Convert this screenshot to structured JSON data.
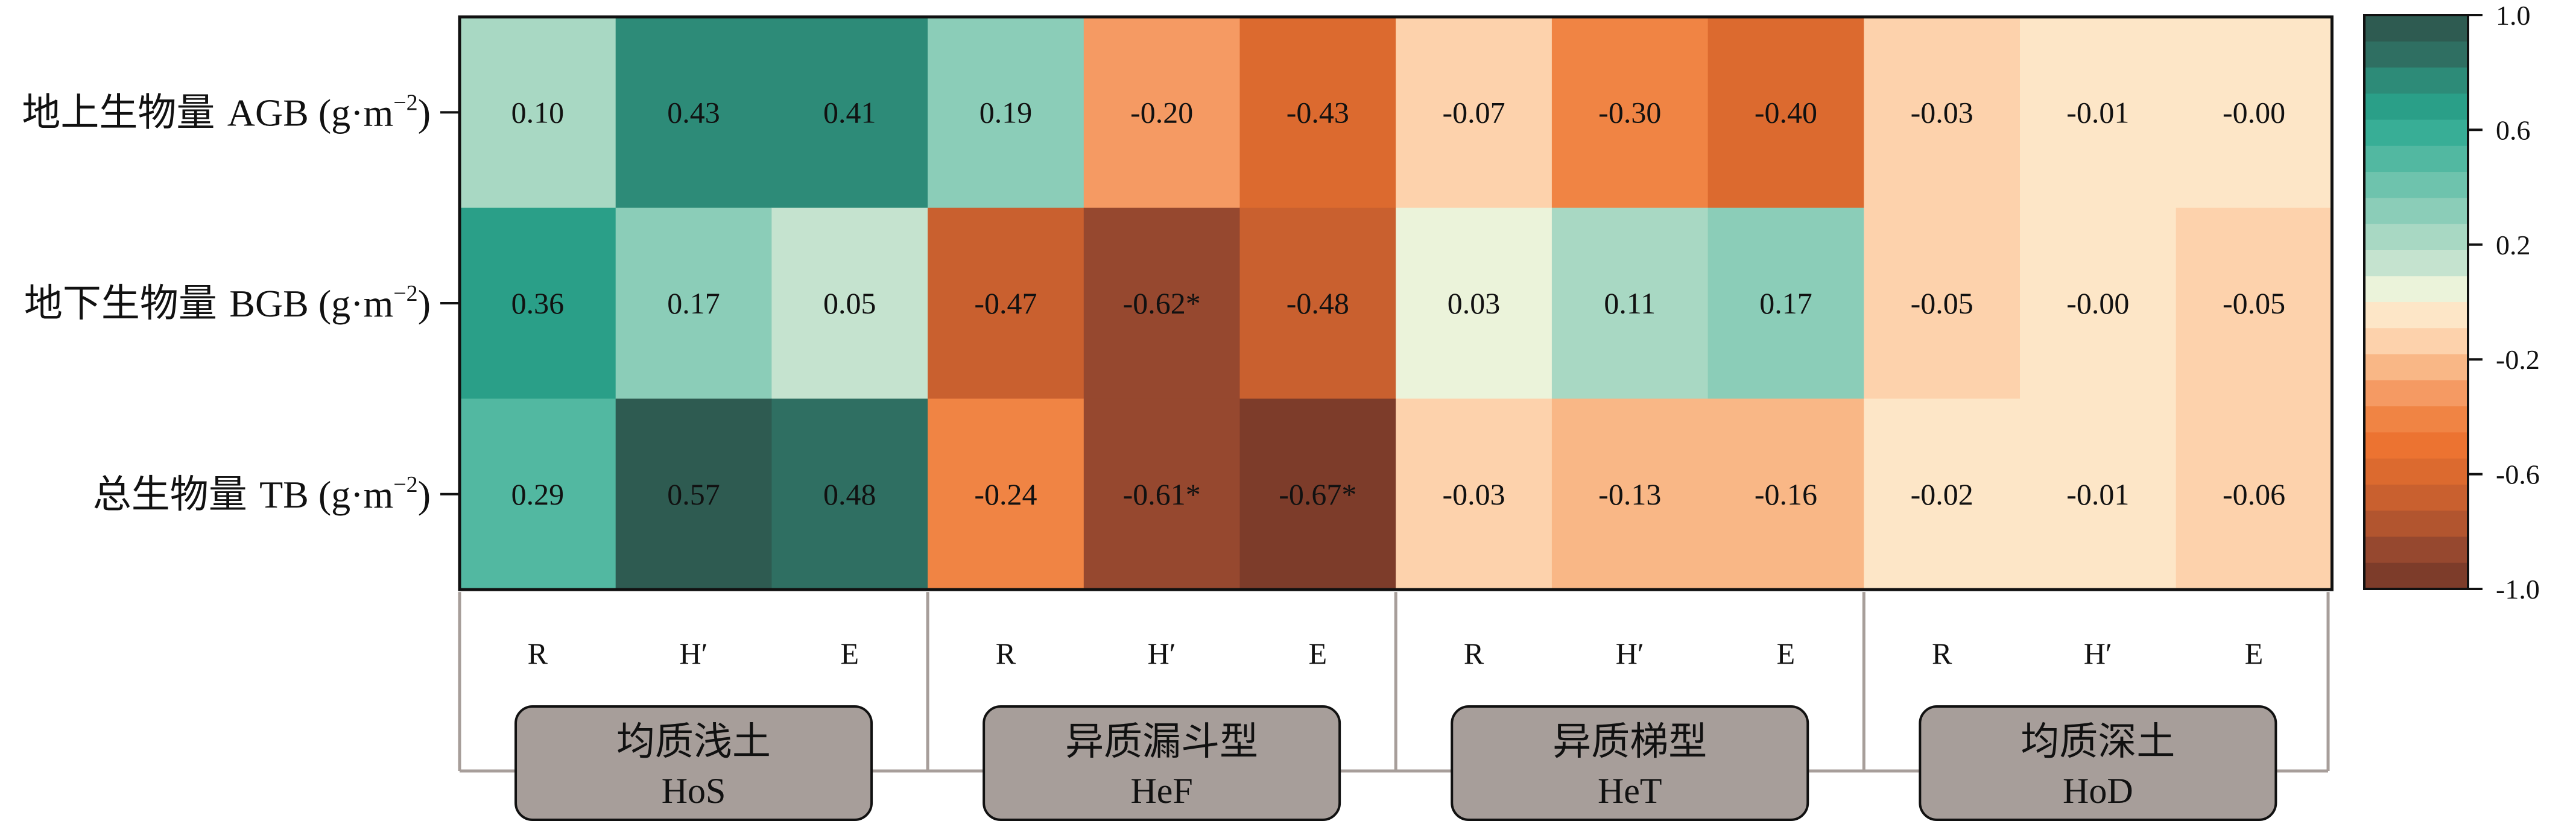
{
  "chart_data": {
    "type": "heatmap",
    "rows": [
      {
        "cn": "地上生物量",
        "abbr": "AGB",
        "unit": "(g·m",
        "sup": "−2",
        "close": ")"
      },
      {
        "cn": "地下生物量",
        "abbr": "BGB",
        "unit": "(g·m",
        "sup": "−2",
        "close": ")"
      },
      {
        "cn": "总生物量",
        "abbr": "TB",
        "unit": "(g·m",
        "sup": "−2",
        "close": ")"
      }
    ],
    "columns": [
      "R",
      "H′",
      "E",
      "R",
      "H′",
      "E",
      "R",
      "H′",
      "E",
      "R",
      "H′",
      "E"
    ],
    "groups": [
      {
        "cn": "均质浅土",
        "en": "HoS"
      },
      {
        "cn": "异质漏斗型",
        "en": "HeF"
      },
      {
        "cn": "异质梯型",
        "en": "HeT"
      },
      {
        "cn": "均质深土",
        "en": "HoD"
      }
    ],
    "values": [
      [
        0.1,
        0.43,
        0.41,
        0.19,
        -0.2,
        -0.43,
        -0.07,
        -0.3,
        -0.4,
        -0.03,
        -0.01,
        -0.0
      ],
      [
        0.36,
        0.17,
        0.05,
        -0.47,
        -0.62,
        -0.48,
        0.03,
        0.11,
        0.17,
        -0.05,
        -0.0,
        -0.05
      ],
      [
        0.29,
        0.57,
        0.48,
        -0.24,
        -0.61,
        -0.67,
        -0.03,
        -0.13,
        -0.16,
        -0.02,
        -0.01,
        -0.06
      ]
    ],
    "labels": [
      [
        "0.10",
        "0.43",
        "0.41",
        "0.19",
        "-0.20",
        "-0.43",
        "-0.07",
        "-0.30",
        "-0.40",
        "-0.03",
        "-0.01",
        "-0.00"
      ],
      [
        "0.36",
        "0.17",
        "0.05",
        "-0.47",
        "-0.62*",
        "-0.48",
        "0.03",
        "0.11",
        "0.17",
        "-0.05",
        "-0.00",
        "-0.05"
      ],
      [
        "0.29",
        "0.57",
        "0.48",
        "-0.24",
        "-0.61*",
        "-0.67*",
        "-0.03",
        "-0.13",
        "-0.16",
        "-0.02",
        "-0.01",
        "-0.06"
      ]
    ],
    "colorbar": {
      "range": [
        -1.0,
        1.0
      ],
      "ticks": [
        "1.0",
        "0.6",
        "0.2",
        "-0.2",
        "-0.6",
        "-1.0"
      ],
      "tick_values": [
        1.0,
        0.6,
        0.2,
        -0.2,
        -0.6,
        -1.0
      ],
      "colors_positive": [
        "#ebf3da",
        "#c5e3cf",
        "#a8d8c3",
        "#8bcdb8",
        "#6ec3ad",
        "#52b8a1",
        "#38ae96",
        "#2a9f88",
        "#2d8b78",
        "#2f6f62",
        "#2e5b51"
      ],
      "colors_negative": [
        "#fde6c7",
        "#fdd2ac",
        "#f9b786",
        "#f59a63",
        "#f08444",
        "#ec7331",
        "#dc6a2f",
        "#c9602f",
        "#b2552f",
        "#96482f",
        "#7d3c2a"
      ]
    },
    "group_box_color": "#a79e9a",
    "grid_color": "#111111"
  }
}
